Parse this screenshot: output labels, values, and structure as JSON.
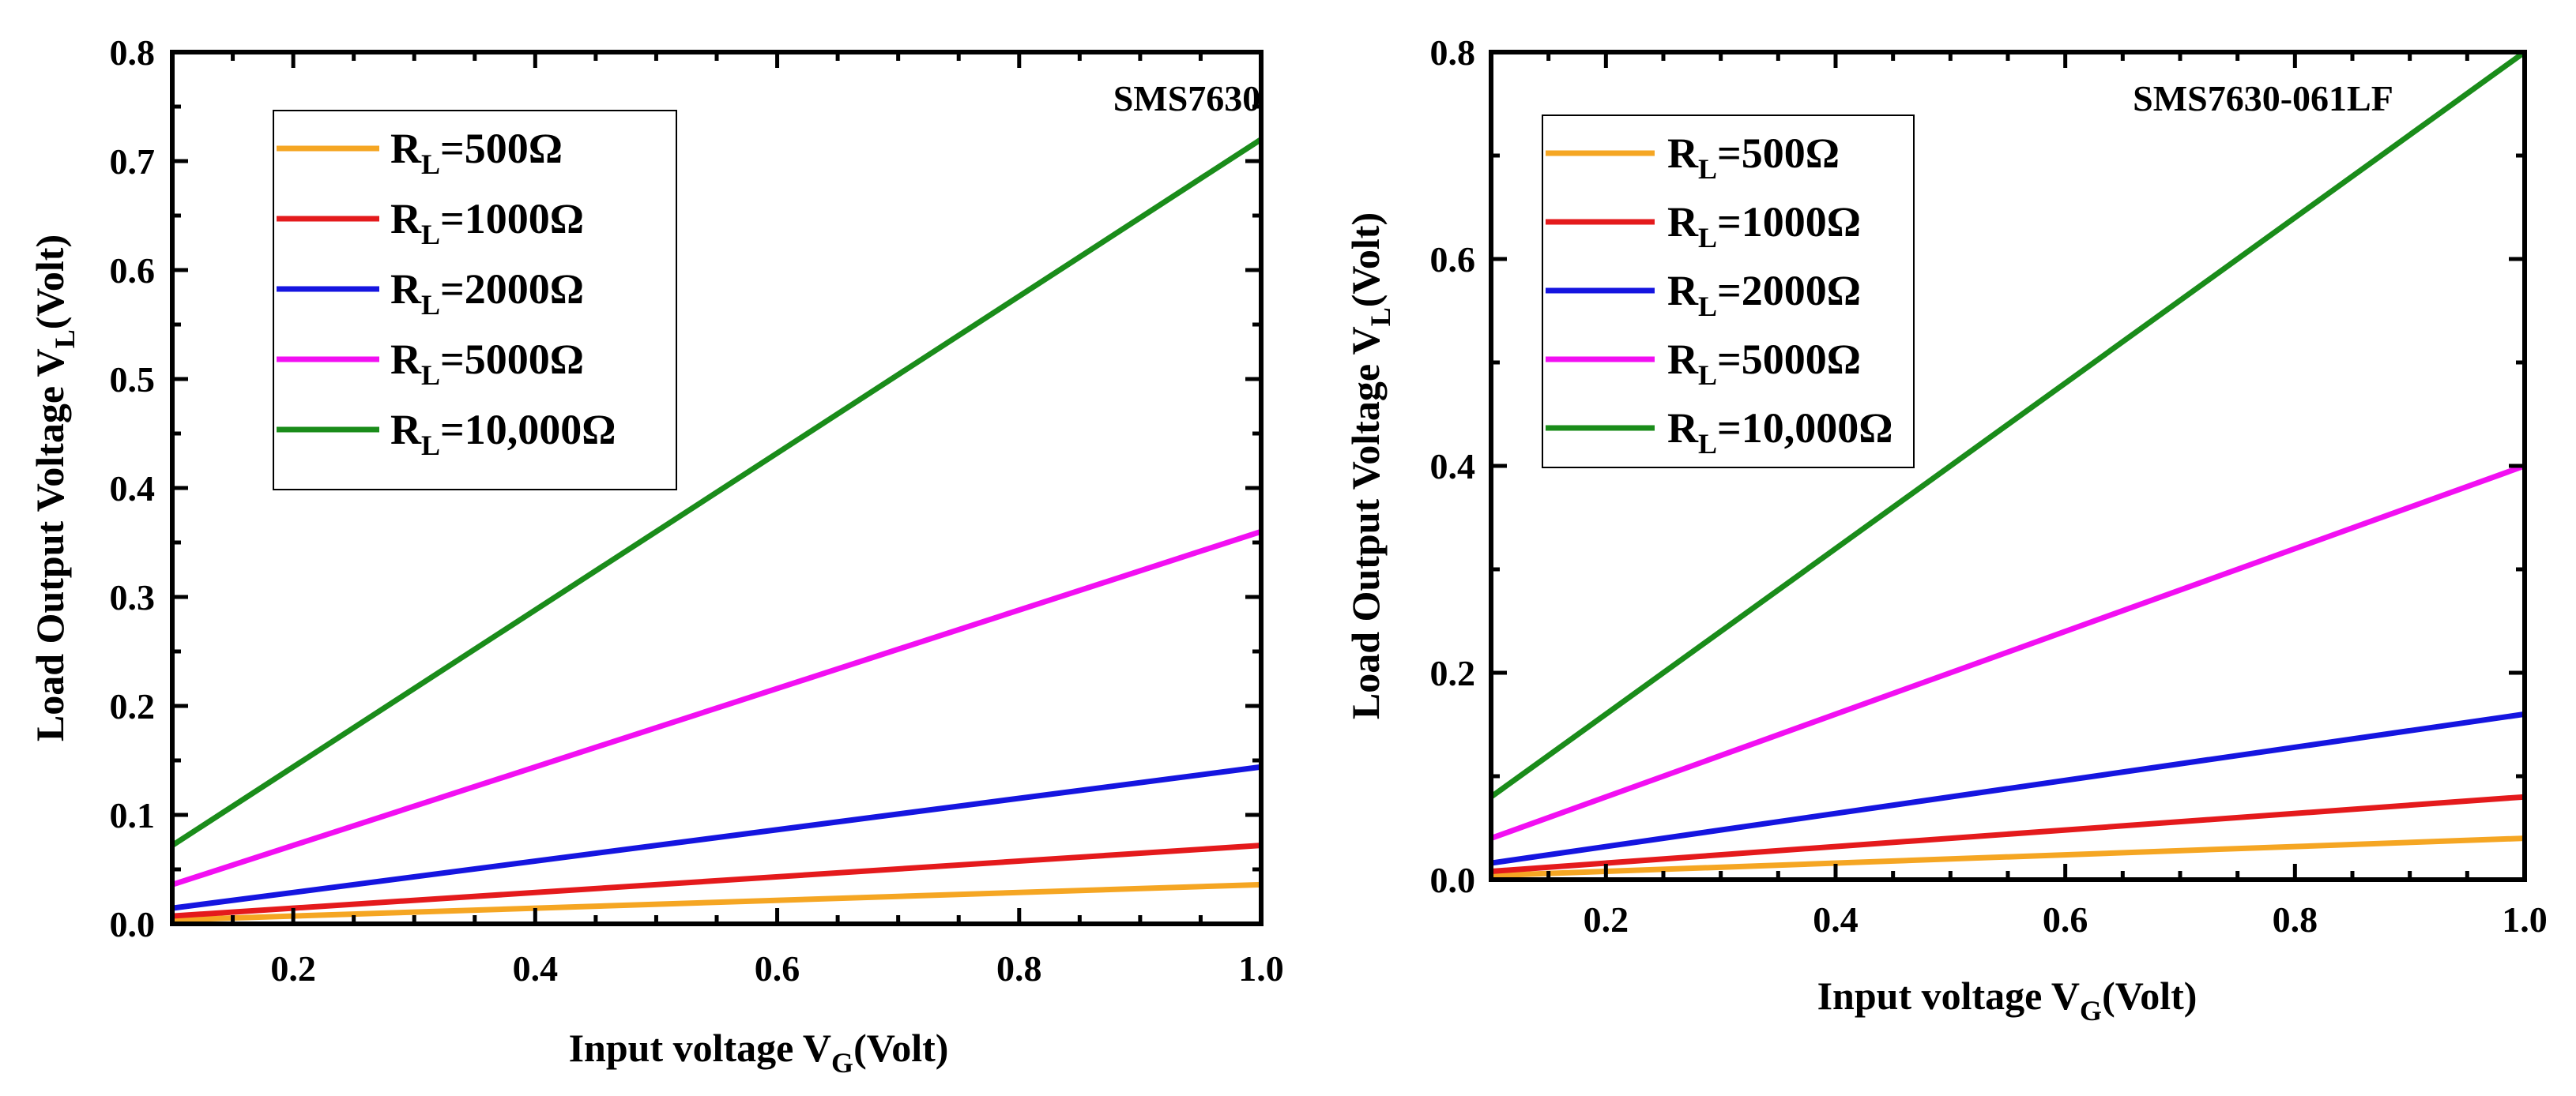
{
  "chart_data": [
    {
      "type": "line",
      "title": "SMS7630",
      "xlabel": {
        "main": "Input voltage V",
        "sub": "G",
        "unit": "(Volt)"
      },
      "ylabel": {
        "main": "Load Output Voltage V",
        "sub": "L",
        "unit": "(Volt)"
      },
      "xlim": [
        0.1,
        1.0
      ],
      "ylim": [
        0.0,
        0.8
      ],
      "xticks": [
        0.2,
        0.4,
        0.6,
        0.8,
        1.0
      ],
      "xtick_labels": [
        "0.2",
        "0.4",
        "0.6",
        "0.8",
        "1.0"
      ],
      "yticks": [
        0.0,
        0.1,
        0.2,
        0.3,
        0.4,
        0.5,
        0.6,
        0.7,
        0.8
      ],
      "ytick_labels": [
        "0.0",
        "0.1",
        "0.2",
        "0.3",
        "0.4",
        "0.5",
        "0.6",
        "0.7",
        "0.8"
      ],
      "legend_position": "top-left",
      "series": [
        {
          "name": "RL=500Ω",
          "label_main": "R",
          "label_sub": "L",
          "label_rest": "=500Ω",
          "color": "#F5A623",
          "x": [
            0.1,
            1.0
          ],
          "y": [
            0.0036,
            0.036
          ]
        },
        {
          "name": "RL=1000Ω",
          "label_main": "R",
          "label_sub": "L",
          "label_rest": "=1000Ω",
          "color": "#E41A1C",
          "x": [
            0.1,
            1.0
          ],
          "y": [
            0.0072,
            0.072
          ]
        },
        {
          "name": "RL=2000Ω",
          "label_main": "R",
          "label_sub": "L",
          "label_rest": "=2000Ω",
          "color": "#1515E0",
          "x": [
            0.1,
            1.0
          ],
          "y": [
            0.0144,
            0.144
          ]
        },
        {
          "name": "RL=5000Ω",
          "label_main": "R",
          "label_sub": "L",
          "label_rest": "=5000Ω",
          "color": "#F20FF2",
          "x": [
            0.1,
            1.0
          ],
          "y": [
            0.036,
            0.36
          ]
        },
        {
          "name": "RL=10,000Ω",
          "label_main": "R",
          "label_sub": "L",
          "label_rest": "=10,000Ω",
          "color": "#1A8C1A",
          "x": [
            0.1,
            1.0
          ],
          "y": [
            0.072,
            0.72
          ]
        }
      ]
    },
    {
      "type": "line",
      "title": "SMS7630-061LF",
      "xlabel": {
        "main": "Input voltage V",
        "sub": "G",
        "unit": "(Volt)"
      },
      "ylabel": {
        "main": "Load Output Voltage V",
        "sub": "L",
        "unit": "(Volt)"
      },
      "xlim": [
        0.1,
        1.0
      ],
      "ylim": [
        0.0,
        0.8
      ],
      "xticks": [
        0.2,
        0.4,
        0.6,
        0.8,
        1.0
      ],
      "xtick_labels": [
        "0.2",
        "0.4",
        "0.6",
        "0.8",
        "1.0"
      ],
      "yticks": [
        0.0,
        0.2,
        0.4,
        0.6,
        0.8
      ],
      "ytick_labels": [
        "0.0",
        "0.2",
        "0.4",
        "0.6",
        "0.8"
      ],
      "legend_position": "top-left",
      "series": [
        {
          "name": "RL=500Ω",
          "label_main": "R",
          "label_sub": "L",
          "label_rest": "=500Ω",
          "color": "#F5A623",
          "x": [
            0.1,
            1.0
          ],
          "y": [
            0.004,
            0.04
          ]
        },
        {
          "name": "RL=1000Ω",
          "label_main": "R",
          "label_sub": "L",
          "label_rest": "=1000Ω",
          "color": "#E41A1C",
          "x": [
            0.1,
            1.0
          ],
          "y": [
            0.008,
            0.08
          ]
        },
        {
          "name": "RL=2000Ω",
          "label_main": "R",
          "label_sub": "L",
          "label_rest": "=2000Ω",
          "color": "#1515E0",
          "x": [
            0.1,
            1.0
          ],
          "y": [
            0.016,
            0.16
          ]
        },
        {
          "name": "RL=5000Ω",
          "label_main": "R",
          "label_sub": "L",
          "label_rest": "=5000Ω",
          "color": "#F20FF2",
          "x": [
            0.1,
            1.0
          ],
          "y": [
            0.04,
            0.4
          ]
        },
        {
          "name": "RL=10,000Ω",
          "label_main": "R",
          "label_sub": "L",
          "label_rest": "=10,000Ω",
          "color": "#1A8C1A",
          "x": [
            0.1,
            1.0
          ],
          "y": [
            0.08,
            0.8
          ]
        }
      ]
    }
  ]
}
